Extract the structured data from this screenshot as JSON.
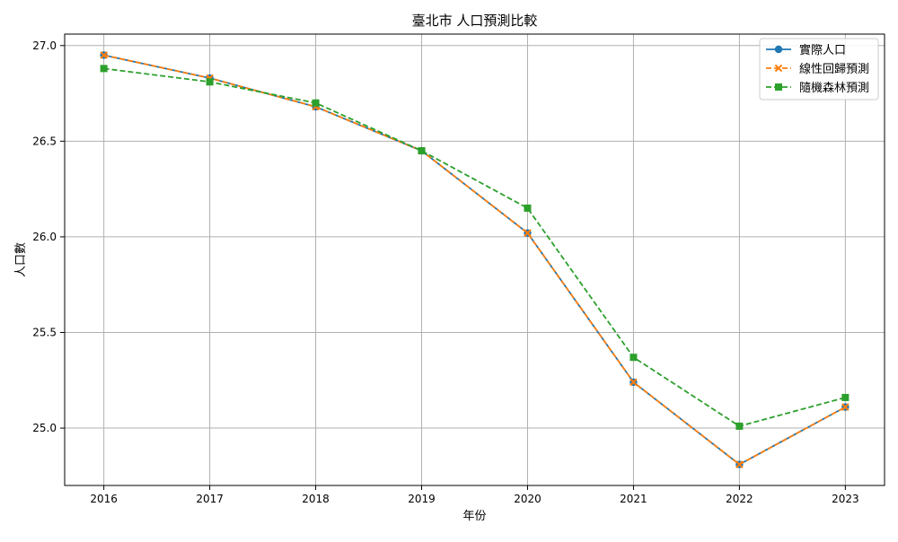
{
  "chart_data": {
    "type": "line",
    "title": "臺北市 人口預測比較",
    "xlabel": "年份",
    "ylabel": "人口數",
    "x": [
      2016,
      2017,
      2018,
      2019,
      2020,
      2021,
      2022,
      2023
    ],
    "x_ticks": [
      "2016",
      "2017",
      "2018",
      "2019",
      "2020",
      "2021",
      "2022",
      "2023"
    ],
    "y_ticks": [
      "25.0",
      "25.5",
      "26.0",
      "26.5",
      "27.0"
    ],
    "y_tick_values": [
      25.0,
      25.5,
      26.0,
      26.5,
      27.0
    ],
    "xlim": [
      2015.63,
      2023.37
    ],
    "ylim": [
      24.7,
      27.06
    ],
    "grid": true,
    "legend_position": "top-right",
    "series": [
      {
        "name": "實際人口",
        "color": "#1f77b4",
        "marker": "circle",
        "linestyle": "solid",
        "values": [
          26.95,
          26.83,
          26.68,
          26.45,
          26.02,
          25.24,
          24.81,
          25.11
        ]
      },
      {
        "name": "線性回歸預測",
        "color": "#ff7f0e",
        "marker": "x",
        "linestyle": "dashed",
        "values": [
          26.95,
          26.83,
          26.68,
          26.45,
          26.02,
          25.24,
          24.81,
          25.11
        ]
      },
      {
        "name": "隨機森林預測",
        "color": "#2ca02c",
        "marker": "square",
        "linestyle": "dashed",
        "values": [
          26.88,
          26.81,
          26.7,
          26.45,
          26.15,
          25.37,
          25.01,
          25.16
        ]
      }
    ]
  }
}
